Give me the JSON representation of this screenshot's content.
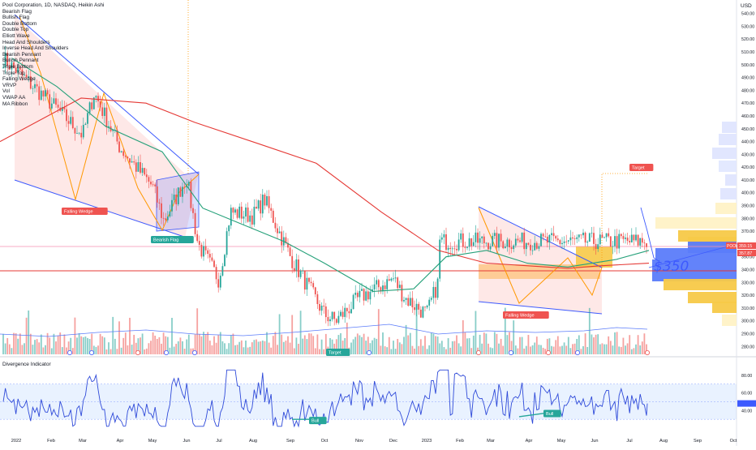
{
  "header": {
    "title": "Pool Corporation, 1D, NASDAQ, Heikin Ashi",
    "currency": "USD"
  },
  "legend_items": [
    "Bearish Flag",
    "Bullish Flag",
    "Double Bottom",
    "Double Top",
    "Elliott Wave",
    "Head And Shoulders",
    "Inverse Head And Shoulders",
    "Bearish Pennant",
    "Bullish Pennant",
    "Triple Bottom",
    "Triple Top",
    "Falling Wedge",
    "VRVP",
    "Vol",
    "VWAP AA",
    "MA Ribbon"
  ],
  "indicator": {
    "title": "Divergence Indicator",
    "ticks": [
      "80.00",
      "60.00",
      "40.00"
    ]
  },
  "price_ticks": [
    "540.00",
    "530.00",
    "520.00",
    "510.00",
    "500.00",
    "490.00",
    "480.00",
    "470.00",
    "460.00",
    "450.00",
    "440.00",
    "430.00",
    "420.00",
    "410.00",
    "400.00",
    "390.00",
    "380.00",
    "370.00",
    "360.00",
    "350.00",
    "340.00",
    "330.00",
    "320.00",
    "310.00",
    "300.00",
    "290.00",
    "280.00"
  ],
  "price_badges": {
    "symbol": "POOL",
    "last": "359.15",
    "second": "357.87"
  },
  "annotation_text": "$350",
  "pattern_labels": {
    "falling_wedge_1": "Falling Wedge",
    "bearish_flag": "Bearish Flag",
    "target_1": "Target",
    "falling_wedge_2": "Falling Wedge",
    "target_2": "Target"
  },
  "divergence_labels": {
    "bull_1": "Bull",
    "bull_2": "Bull"
  },
  "colors": {
    "up": "#26a69a",
    "down": "#ef5350",
    "ma_slow": "#e53935",
    "ma_fast": "#26a17a",
    "wedge_line": "#3d5afe",
    "vrvp_blue": "#5b7cfa",
    "vrvp_yellow": "#f7c948",
    "osc_line": "#2f4ad9"
  },
  "chart_data": {
    "type": "candlestick",
    "title": "Pool Corporation, 1D, NASDAQ, Heikin Ashi",
    "x_ticks": [
      "2022",
      "Feb",
      "Mar",
      "Apr",
      "May",
      "Jun",
      "Jul",
      "Aug",
      "Sep",
      "Oct",
      "Nov",
      "Dec",
      "2023",
      "Feb",
      "Mar",
      "Apr",
      "May",
      "Jun",
      "Jul",
      "Aug",
      "Sep",
      "Oct"
    ],
    "ylim": [
      277,
      548
    ],
    "last_price": 359.15,
    "price_path": [
      [
        "2022",
        505
      ],
      [
        "Feb",
        470
      ],
      [
        "Mar",
        445
      ],
      [
        "Mar",
        478
      ],
      [
        "Apr",
        435
      ],
      [
        "May",
        405
      ],
      [
        "May",
        378
      ],
      [
        "Jun",
        412
      ],
      [
        "Jun",
        360
      ],
      [
        "Jul",
        332
      ],
      [
        "Jul",
        385
      ],
      [
        "Aug",
        382
      ],
      [
        "Aug",
        395
      ],
      [
        "Sep",
        350
      ],
      [
        "Oct",
        305
      ],
      [
        "Oct",
        300
      ],
      [
        "Nov",
        318
      ],
      [
        "Dec",
        333
      ],
      [
        "Dec",
        318
      ],
      [
        "2023",
        305
      ],
      [
        "2023",
        330
      ],
      [
        "Feb",
        365
      ],
      [
        "Feb",
        418
      ],
      [
        "Mar",
        372
      ],
      [
        "Mar",
        350
      ],
      [
        "Apr",
        340
      ],
      [
        "May",
        349
      ],
      [
        "May",
        346
      ],
      [
        "Jun",
        330
      ],
      [
        "Jun",
        340
      ],
      [
        "Jul",
        368
      ],
      [
        "Jul",
        392
      ],
      [
        "Jul",
        362
      ]
    ],
    "ma_slow": [
      [
        0,
        440
      ],
      [
        100,
        474
      ],
      [
        180,
        470
      ],
      [
        240,
        455
      ],
      [
        320,
        438
      ],
      [
        390,
        423
      ],
      [
        470,
        385
      ],
      [
        540,
        355
      ],
      [
        600,
        345
      ],
      [
        700,
        341
      ],
      [
        740,
        343
      ],
      [
        800,
        345
      ]
    ],
    "ma_fast": [
      [
        15,
        505
      ],
      [
        70,
        483
      ],
      [
        130,
        452
      ],
      [
        200,
        432
      ],
      [
        250,
        388
      ],
      [
        300,
        375
      ],
      [
        350,
        362
      ],
      [
        400,
        345
      ],
      [
        460,
        323
      ],
      [
        510,
        325
      ],
      [
        550,
        350
      ],
      [
        600,
        355
      ],
      [
        650,
        345
      ],
      [
        700,
        342
      ],
      [
        760,
        348
      ],
      [
        800,
        355
      ]
    ],
    "oscillator": {
      "ticks": [
        80,
        60,
        40
      ],
      "band": [
        30,
        70
      ],
      "last": 48
    }
  }
}
